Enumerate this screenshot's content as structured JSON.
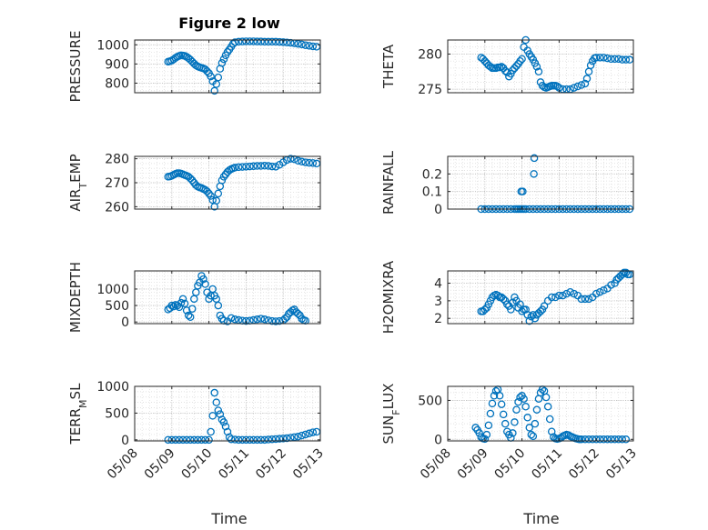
{
  "figure": {
    "title": "Figure 2 low",
    "marker": "circle",
    "marker_color": "#0072BD",
    "axis_color": "#262626",
    "grid": "on, dotted, major and minor",
    "x_tick_labels": [
      "05/08",
      "05/09",
      "05/10",
      "05/11",
      "05/12",
      "05/13"
    ],
    "xlabel": "Time"
  },
  "chart_data": [
    {
      "type": "scatter",
      "ylabel": "PRESSURE",
      "ylim": [
        750,
        1025
      ],
      "yticks": [
        800,
        900,
        1000
      ],
      "xlim": [
        "05/08",
        "05/13"
      ],
      "x": [
        0.9,
        0.95,
        1.0,
        1.05,
        1.1,
        1.15,
        1.2,
        1.25,
        1.3,
        1.35,
        1.4,
        1.45,
        1.5,
        1.55,
        1.6,
        1.65,
        1.7,
        1.75,
        1.8,
        1.85,
        1.9,
        1.95,
        2.0,
        2.05,
        2.1,
        2.15,
        2.2,
        2.25,
        2.3,
        2.35,
        2.4,
        2.45,
        2.5,
        2.55,
        2.6,
        2.65,
        2.7,
        2.8,
        2.9,
        3.0,
        3.1,
        3.2,
        3.3,
        3.4,
        3.5,
        3.6,
        3.7,
        3.8,
        3.9,
        4.0,
        4.1,
        4.2,
        4.3,
        4.4,
        4.5,
        4.6,
        4.7,
        4.8,
        4.9
      ],
      "y": [
        912,
        914,
        918,
        924,
        932,
        938,
        942,
        945,
        944,
        942,
        937,
        930,
        922,
        912,
        902,
        893,
        887,
        883,
        880,
        877,
        872,
        862,
        852,
        835,
        810,
        760,
        795,
        830,
        875,
        905,
        925,
        945,
        962,
        975,
        990,
        1005,
        1013,
        1016,
        1017,
        1018,
        1018,
        1018,
        1017,
        1017,
        1016,
        1016,
        1016,
        1016,
        1015,
        1014,
        1012,
        1010,
        1008,
        1005,
        1002,
        998,
        995,
        992,
        990
      ]
    },
    {
      "type": "scatter",
      "ylabel": "THETA",
      "ylim": [
        274.5,
        282
      ],
      "yticks": [
        275,
        280
      ],
      "xlim": [
        "05/08",
        "05/13"
      ],
      "x": [
        0.9,
        0.95,
        1.0,
        1.05,
        1.1,
        1.15,
        1.2,
        1.25,
        1.3,
        1.35,
        1.4,
        1.45,
        1.5,
        1.55,
        1.6,
        1.65,
        1.7,
        1.75,
        1.8,
        1.85,
        1.9,
        1.95,
        2.0,
        2.05,
        2.1,
        2.15,
        2.2,
        2.25,
        2.3,
        2.35,
        2.4,
        2.45,
        2.5,
        2.55,
        2.6,
        2.65,
        2.7,
        2.75,
        2.8,
        2.85,
        2.9,
        2.95,
        3.0,
        3.1,
        3.2,
        3.3,
        3.4,
        3.5,
        3.6,
        3.7,
        3.75,
        3.8,
        3.85,
        3.9,
        3.95,
        4.0,
        4.1,
        4.2,
        4.3,
        4.4,
        4.5,
        4.6,
        4.7,
        4.8,
        4.9
      ],
      "y": [
        279.5,
        279.3,
        279.0,
        278.7,
        278.4,
        278.2,
        278.0,
        278.0,
        278.0,
        278.1,
        278.1,
        278.2,
        278.0,
        277.6,
        277.4,
        276.8,
        277.2,
        277.7,
        278.0,
        278.3,
        278.6,
        279.0,
        279.3,
        281.0,
        282.0,
        280.5,
        280.0,
        279.6,
        279.2,
        278.7,
        278.2,
        277.5,
        276.0,
        275.5,
        275.3,
        275.2,
        275.3,
        275.4,
        275.5,
        275.5,
        275.5,
        275.4,
        275.2,
        275.0,
        275.0,
        275.0,
        275.2,
        275.4,
        275.6,
        275.8,
        276.5,
        277.5,
        278.4,
        279.0,
        279.4,
        279.5,
        279.5,
        279.5,
        279.4,
        279.3,
        279.3,
        279.3,
        279.2,
        279.2,
        279.2
      ]
    },
    {
      "type": "scatter",
      "ylabel": "AIR_TEMP",
      "ylim": [
        259,
        281
      ],
      "yticks": [
        260,
        270,
        280
      ],
      "xlim": [
        "05/08",
        "05/13"
      ],
      "x": [
        0.9,
        0.95,
        1.0,
        1.05,
        1.1,
        1.15,
        1.2,
        1.25,
        1.3,
        1.35,
        1.4,
        1.45,
        1.5,
        1.55,
        1.6,
        1.65,
        1.7,
        1.75,
        1.8,
        1.85,
        1.9,
        1.95,
        2.0,
        2.05,
        2.1,
        2.15,
        2.2,
        2.25,
        2.3,
        2.35,
        2.4,
        2.45,
        2.5,
        2.55,
        2.6,
        2.65,
        2.7,
        2.8,
        2.9,
        3.0,
        3.1,
        3.2,
        3.3,
        3.4,
        3.5,
        3.6,
        3.7,
        3.8,
        3.9,
        4.0,
        4.1,
        4.2,
        4.3,
        4.4,
        4.5,
        4.6,
        4.7,
        4.8,
        4.9
      ],
      "y": [
        272.5,
        272.6,
        272.9,
        273.3,
        273.7,
        274.0,
        274.0,
        273.8,
        273.5,
        273.2,
        272.9,
        272.5,
        271.8,
        271.0,
        270.0,
        269.0,
        268.4,
        268.0,
        267.8,
        267.4,
        267.0,
        266.4,
        265.5,
        264.5,
        262.8,
        260.0,
        262.5,
        265.5,
        268.5,
        271.0,
        272.5,
        273.5,
        274.5,
        275.2,
        275.7,
        276.0,
        276.3,
        276.5,
        276.6,
        276.7,
        276.8,
        276.9,
        277.0,
        277.0,
        277.1,
        277.0,
        276.8,
        276.7,
        277.5,
        278.5,
        279.5,
        280.0,
        279.8,
        279.2,
        278.8,
        278.5,
        278.3,
        278.2,
        278.0
      ]
    },
    {
      "type": "scatter",
      "ylabel": "RAINFALL",
      "ylim": [
        0,
        0.3
      ],
      "yticks": [
        0,
        0.1,
        0.2
      ],
      "xlim": [
        "05/08",
        "05/13"
      ],
      "x": [
        0.9,
        1.0,
        1.1,
        1.2,
        1.3,
        1.4,
        1.5,
        1.6,
        1.7,
        1.8,
        1.85,
        1.9,
        1.95,
        2.0,
        2.05,
        2.1,
        2.2,
        2.3,
        2.4,
        2.5,
        2.6,
        2.7,
        2.8,
        2.9,
        3.0,
        3.1,
        3.2,
        3.3,
        3.4,
        3.5,
        3.6,
        3.7,
        3.8,
        3.9,
        4.0,
        4.1,
        4.2,
        4.3,
        4.4,
        4.5,
        4.6,
        4.7,
        4.8,
        4.9,
        1.98,
        2.02,
        2.32,
        2.33
      ],
      "y": [
        0,
        0,
        0,
        0,
        0,
        0,
        0,
        0,
        0,
        0,
        0,
        0,
        0,
        0,
        0,
        0,
        0,
        0,
        0,
        0,
        0,
        0,
        0,
        0,
        0,
        0,
        0,
        0,
        0,
        0,
        0,
        0,
        0,
        0,
        0,
        0,
        0,
        0,
        0,
        0,
        0,
        0,
        0,
        0,
        0.1,
        0.1,
        0.2,
        0.29
      ]
    },
    {
      "type": "scatter",
      "ylabel": "MIXDEPTH",
      "ylim": [
        -50,
        1550
      ],
      "yticks": [
        0,
        500,
        1000
      ],
      "xlim": [
        "05/08",
        "05/13"
      ],
      "x": [
        0.9,
        0.95,
        1.0,
        1.05,
        1.1,
        1.15,
        1.2,
        1.25,
        1.3,
        1.35,
        1.4,
        1.45,
        1.5,
        1.55,
        1.6,
        1.65,
        1.7,
        1.75,
        1.8,
        1.85,
        1.9,
        1.95,
        2.0,
        2.05,
        2.1,
        2.15,
        2.2,
        2.25,
        2.3,
        2.35,
        2.4,
        2.5,
        2.6,
        2.7,
        2.8,
        2.9,
        3.0,
        3.1,
        3.2,
        3.3,
        3.4,
        3.5,
        3.6,
        3.7,
        3.8,
        3.9,
        4.0,
        4.05,
        4.1,
        4.15,
        4.2,
        4.25,
        4.3,
        4.35,
        4.4,
        4.45,
        4.5,
        4.55,
        4.6
      ],
      "y": [
        380,
        420,
        500,
        470,
        520,
        500,
        450,
        580,
        700,
        560,
        350,
        200,
        150,
        400,
        700,
        900,
        1100,
        1200,
        1400,
        1300,
        1150,
        900,
        700,
        800,
        1000,
        800,
        700,
        500,
        200,
        100,
        40,
        20,
        120,
        80,
        60,
        40,
        30,
        40,
        60,
        80,
        100,
        80,
        50,
        30,
        20,
        30,
        50,
        100,
        150,
        250,
        300,
        350,
        380,
        300,
        250,
        200,
        100,
        60,
        40
      ]
    },
    {
      "type": "scatter",
      "ylabel": "H2OMIXRA",
      "ylim": [
        1.7,
        4.7
      ],
      "yticks": [
        2,
        3,
        4
      ],
      "xlim": [
        "05/08",
        "05/13"
      ],
      "x": [
        0.9,
        0.95,
        1.0,
        1.05,
        1.1,
        1.15,
        1.2,
        1.25,
        1.3,
        1.35,
        1.4,
        1.45,
        1.5,
        1.55,
        1.6,
        1.65,
        1.7,
        1.75,
        1.8,
        1.85,
        1.9,
        1.95,
        2.0,
        2.05,
        2.1,
        2.15,
        2.2,
        2.25,
        2.3,
        2.35,
        2.4,
        2.45,
        2.5,
        2.55,
        2.6,
        2.7,
        2.8,
        2.9,
        3.0,
        3.1,
        3.2,
        3.3,
        3.4,
        3.5,
        3.6,
        3.7,
        3.8,
        3.9,
        4.0,
        4.1,
        4.2,
        4.3,
        4.4,
        4.5,
        4.55,
        4.6,
        4.65,
        4.7,
        4.75,
        4.8,
        4.85,
        4.9
      ],
      "y": [
        2.4,
        2.4,
        2.5,
        2.6,
        2.8,
        3.0,
        3.2,
        3.3,
        3.35,
        3.3,
        3.2,
        3.2,
        3.1,
        3.0,
        2.8,
        2.7,
        2.5,
        2.9,
        3.2,
        3.0,
        2.6,
        2.8,
        2.4,
        2.5,
        2.5,
        2.2,
        1.85,
        2.1,
        2.2,
        2.0,
        2.2,
        2.3,
        2.4,
        2.5,
        2.7,
        3.0,
        3.2,
        3.2,
        3.3,
        3.3,
        3.4,
        3.5,
        3.4,
        3.3,
        3.1,
        3.1,
        3.1,
        3.2,
        3.4,
        3.5,
        3.6,
        3.7,
        3.9,
        4.0,
        4.2,
        4.3,
        4.4,
        4.5,
        4.6,
        4.6,
        4.5,
        4.5
      ]
    },
    {
      "type": "scatter",
      "ylabel": "TERR_MSL",
      "ylim": [
        -20,
        1000
      ],
      "yticks": [
        0,
        500,
        1000
      ],
      "xlim": [
        "05/08",
        "05/13"
      ],
      "x": [
        0.9,
        1.0,
        1.1,
        1.2,
        1.3,
        1.4,
        1.5,
        1.6,
        1.7,
        1.8,
        1.9,
        2.0,
        2.05,
        2.1,
        2.15,
        2.2,
        2.25,
        2.3,
        2.35,
        2.4,
        2.45,
        2.5,
        2.55,
        2.6,
        2.7,
        2.8,
        2.9,
        3.0,
        3.1,
        3.2,
        3.3,
        3.4,
        3.5,
        3.6,
        3.7,
        3.8,
        3.9,
        4.0,
        4.1,
        4.2,
        4.3,
        4.4,
        4.5,
        4.6,
        4.7,
        4.8,
        4.9
      ],
      "y": [
        0,
        0,
        0,
        0,
        0,
        0,
        0,
        0,
        0,
        0,
        0,
        0,
        150,
        450,
        880,
        700,
        550,
        480,
        380,
        330,
        250,
        150,
        50,
        10,
        5,
        0,
        0,
        0,
        0,
        0,
        0,
        0,
        0,
        5,
        10,
        15,
        20,
        25,
        30,
        40,
        50,
        60,
        80,
        100,
        120,
        140,
        150
      ]
    },
    {
      "type": "scatter",
      "ylabel": "SUN_FLUX",
      "ylim": [
        -20,
        680
      ],
      "yticks": [
        0,
        500
      ],
      "xlim": [
        "05/08",
        "05/13"
      ],
      "x": [
        0.75,
        0.8,
        0.85,
        0.9,
        0.95,
        1.0,
        1.05,
        1.1,
        1.15,
        1.2,
        1.25,
        1.3,
        1.35,
        1.4,
        1.45,
        1.5,
        1.55,
        1.6,
        1.65,
        1.7,
        1.75,
        1.8,
        1.85,
        1.9,
        1.95,
        2.0,
        2.05,
        2.1,
        2.15,
        2.2,
        2.25,
        2.3,
        2.35,
        2.4,
        2.45,
        2.5,
        2.55,
        2.6,
        2.65,
        2.7,
        2.75,
        2.8,
        2.85,
        2.9,
        2.95,
        3.0,
        3.05,
        3.1,
        3.15,
        3.2,
        3.25,
        3.3,
        3.35,
        3.4,
        3.45,
        3.5,
        3.55,
        3.6,
        3.7,
        3.8,
        3.9,
        4.0,
        4.1,
        4.2,
        4.3,
        4.4,
        4.5,
        4.6,
        4.7,
        4.8
      ],
      "y": [
        150,
        120,
        80,
        30,
        10,
        5,
        60,
        180,
        330,
        460,
        560,
        620,
        640,
        560,
        450,
        320,
        200,
        100,
        60,
        20,
        80,
        220,
        380,
        480,
        540,
        560,
        520,
        420,
        280,
        150,
        60,
        40,
        200,
        380,
        520,
        600,
        640,
        620,
        540,
        420,
        260,
        100,
        30,
        10,
        5,
        10,
        20,
        40,
        50,
        60,
        55,
        40,
        30,
        20,
        10,
        5,
        0,
        0,
        0,
        0,
        0,
        0,
        0,
        0,
        0,
        0,
        0,
        0,
        0,
        0
      ]
    }
  ]
}
